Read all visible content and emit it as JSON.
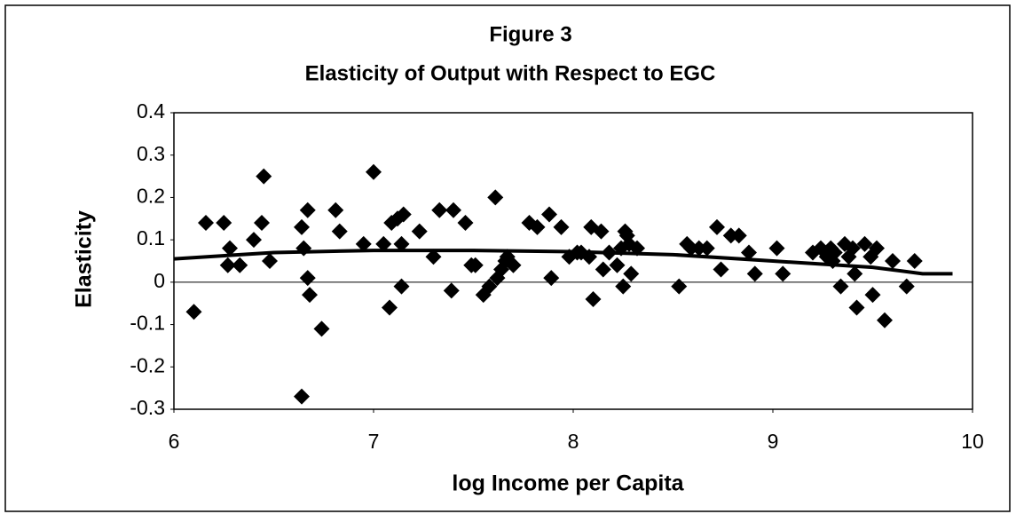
{
  "chart_data": {
    "type": "scatter",
    "title": "Figure 3",
    "subtitle": "Elasticity of Output with Respect to EGC",
    "x_label": "log Income per Capita",
    "y_label": "Elasticity",
    "xlim": [
      6,
      10
    ],
    "ylim": [
      -0.3,
      0.4
    ],
    "xticks": [
      6,
      7,
      8,
      9,
      10
    ],
    "yticks": [
      0.4,
      0.3,
      0.2,
      0.1,
      0,
      -0.1,
      -0.2,
      -0.3
    ],
    "zero_line": true,
    "grid": false,
    "series": [
      {
        "color": "#000000",
        "marker": "diamond",
        "x": [
          6.1,
          6.16,
          6.25,
          6.28,
          6.27,
          6.33,
          6.4,
          6.44,
          6.45,
          6.48,
          6.64,
          6.64,
          6.65,
          6.67,
          6.68,
          6.67,
          6.74,
          6.81,
          6.83,
          6.95,
          7.0,
          7.05,
          7.08,
          7.09,
          7.12,
          7.15,
          7.14,
          7.14,
          7.23,
          7.3,
          7.33,
          7.39,
          7.4,
          7.46,
          7.49,
          7.51,
          7.55,
          7.58,
          7.61,
          7.62,
          7.64,
          7.67,
          7.7,
          7.66,
          7.78,
          7.82,
          7.88,
          7.89,
          7.94,
          7.98,
          8.02,
          8.04,
          8.08,
          8.09,
          8.1,
          8.14,
          8.15,
          8.18,
          8.22,
          8.24,
          8.25,
          8.26,
          8.27,
          8.28,
          8.29,
          8.32,
          8.53,
          8.57,
          8.59,
          8.63,
          8.67,
          8.72,
          8.74,
          8.79,
          8.83,
          8.88,
          8.91,
          9.02,
          9.05,
          9.2,
          9.24,
          9.27,
          9.29,
          9.3,
          9.31,
          9.34,
          9.36,
          9.38,
          9.4,
          9.41,
          9.42,
          9.46,
          9.49,
          9.5,
          9.52,
          9.56,
          9.6,
          9.67,
          9.71
        ],
        "values": [
          -0.07,
          0.14,
          0.14,
          0.08,
          0.04,
          0.04,
          0.1,
          0.14,
          0.25,
          0.05,
          -0.27,
          0.13,
          0.08,
          0.01,
          -0.03,
          0.17,
          -0.11,
          0.17,
          0.12,
          0.09,
          0.26,
          0.09,
          -0.06,
          0.14,
          0.15,
          0.16,
          0.09,
          -0.01,
          0.12,
          0.06,
          0.17,
          -0.02,
          0.17,
          0.14,
          0.04,
          0.04,
          -0.03,
          -0.01,
          0.2,
          0.01,
          0.03,
          0.06,
          0.04,
          0.05,
          0.14,
          0.13,
          0.16,
          0.01,
          0.13,
          0.06,
          0.07,
          0.07,
          0.06,
          0.13,
          -0.04,
          0.12,
          0.03,
          0.07,
          0.04,
          0.08,
          -0.01,
          0.12,
          0.11,
          0.09,
          0.02,
          0.08,
          -0.01,
          0.09,
          0.08,
          0.08,
          0.08,
          0.13,
          0.03,
          0.11,
          0.11,
          0.07,
          0.02,
          0.08,
          0.02,
          0.07,
          0.08,
          0.06,
          0.08,
          0.05,
          0.07,
          -0.01,
          0.09,
          0.06,
          0.08,
          0.02,
          -0.06,
          0.09,
          0.06,
          -0.03,
          0.08,
          -0.09,
          0.05,
          -0.01,
          0.05
        ]
      },
      {
        "color": "#000000",
        "marker": "line",
        "x": [
          6.0,
          6.5,
          7.0,
          7.5,
          8.0,
          8.5,
          9.0,
          9.5,
          9.75,
          9.9
        ],
        "values": [
          0.055,
          0.07,
          0.075,
          0.075,
          0.072,
          0.065,
          0.05,
          0.035,
          0.02,
          0.02
        ]
      }
    ]
  }
}
